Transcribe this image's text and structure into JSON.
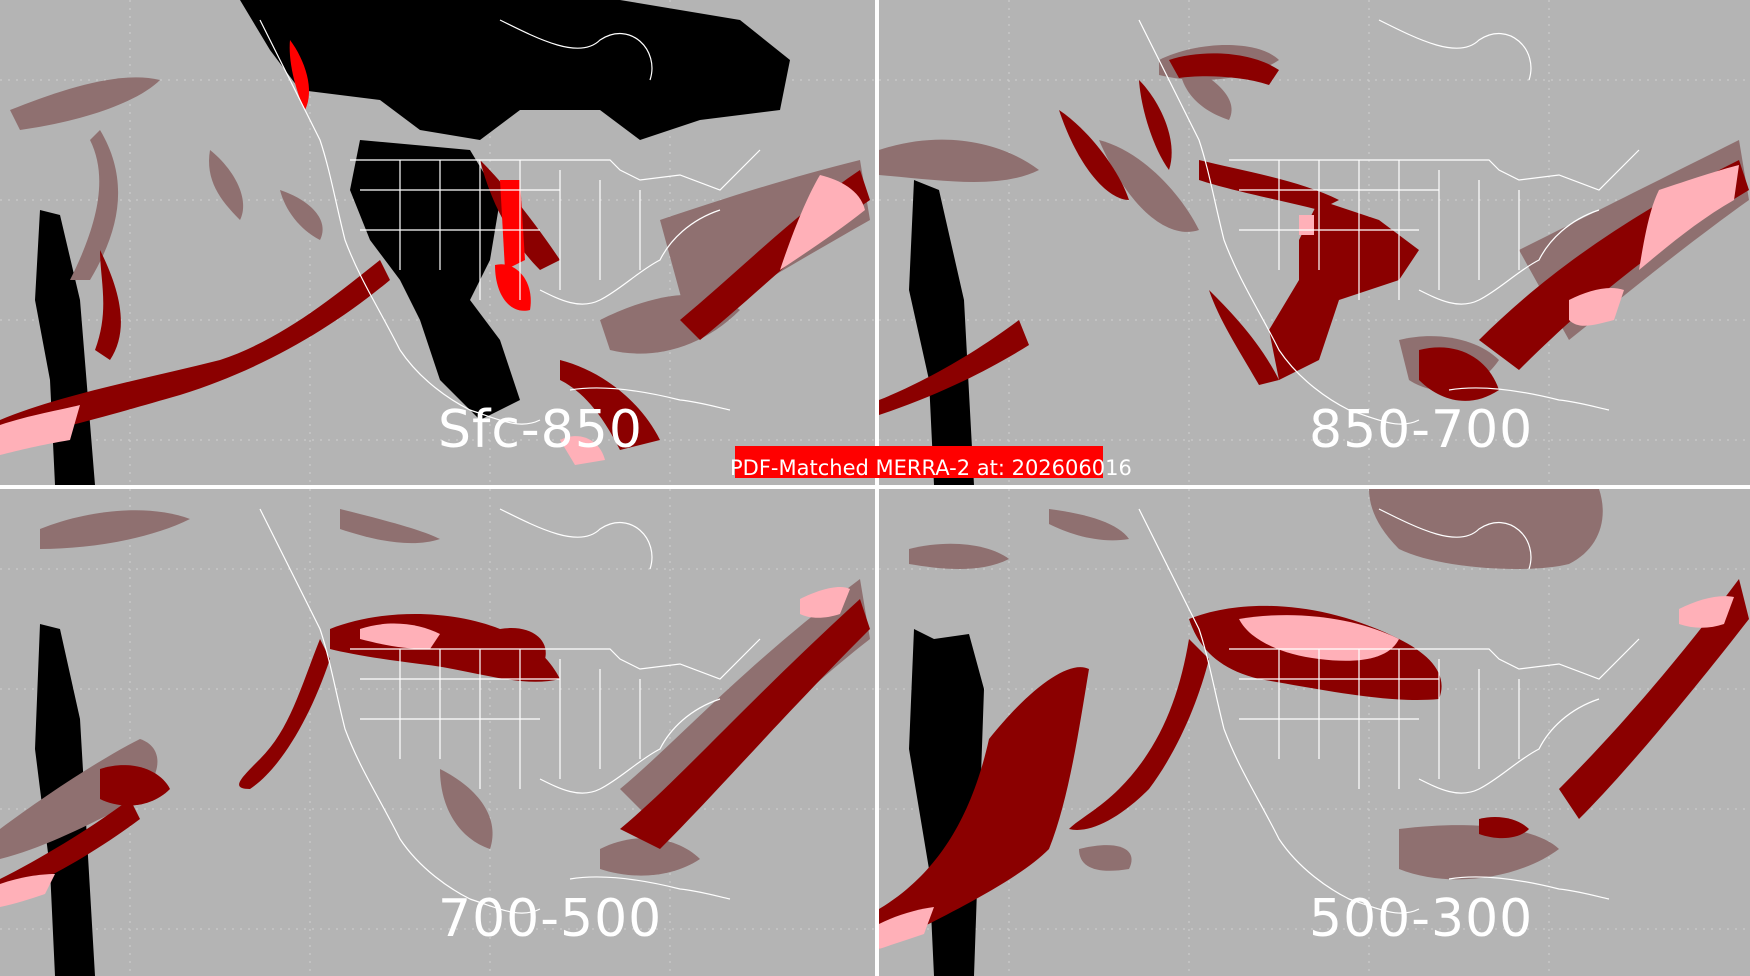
{
  "figure": {
    "banner_text": "PDF-Matched MERRA-2 at: 202606016"
  },
  "panels": [
    {
      "label": "Sfc-850"
    },
    {
      "label": "850-700"
    },
    {
      "label": "700-500"
    },
    {
      "label": "500-300"
    }
  ],
  "colors": {
    "background": "#b4b4b4",
    "light_class": "#8f7070",
    "dark_red_class": "#8b0000",
    "bright_red_class": "#ff0000",
    "pink_class": "#ffb0b8",
    "no_data": "#000000",
    "map_lines": "#ffffff"
  }
}
